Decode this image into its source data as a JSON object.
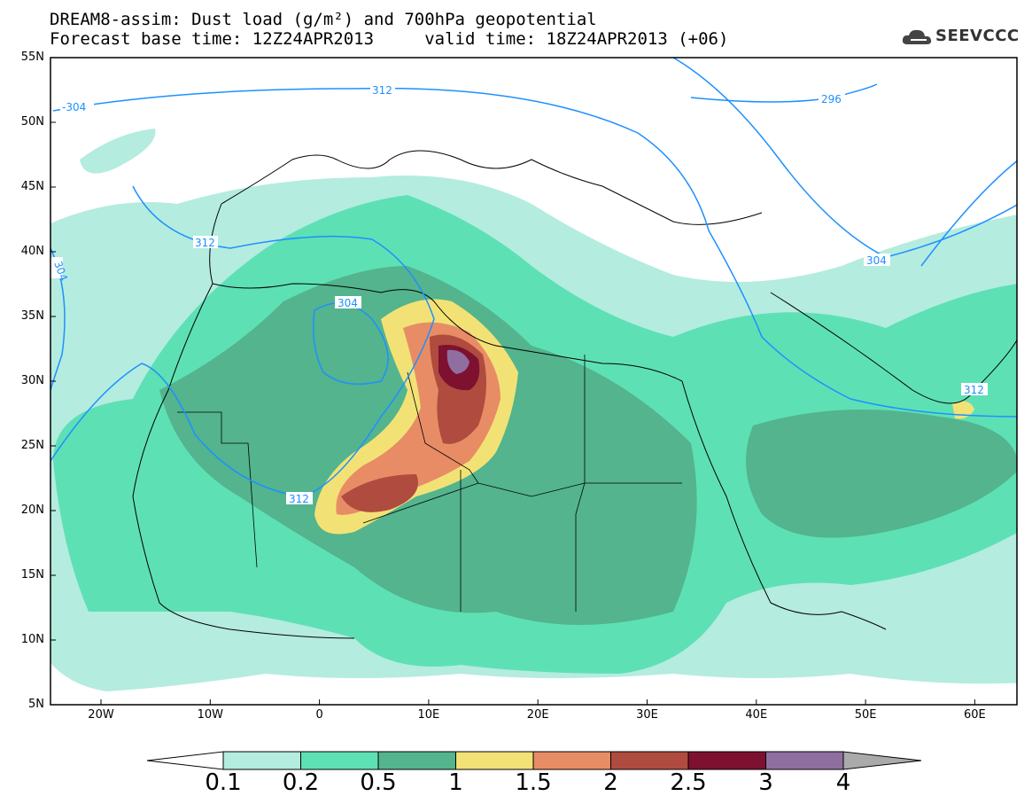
{
  "title_line1": "DREAM8-assim: Dust load (g/m²) and 700hPa geopotential",
  "title_line2": "Forecast base time: 12Z24APR2013     valid time: 18Z24APR2013 (+06)",
  "logo_text": "SEEVCCC",
  "lat_labels": [
    "55N",
    "50N",
    "45N",
    "40N",
    "35N",
    "30N",
    "25N",
    "20N",
    "15N",
    "10N",
    "5N"
  ],
  "lon_labels": [
    "20W",
    "10W",
    "0",
    "10E",
    "20E",
    "30E",
    "40E",
    "50E",
    "60E"
  ],
  "colorbar": {
    "labels": [
      "0.1",
      "0.2",
      "0.5",
      "1",
      "1.5",
      "2",
      "2.5",
      "3",
      "4"
    ],
    "colors": [
      "#b4ecdf",
      "#5ee0b5",
      "#53b48e",
      "#f2e276",
      "#e88c65",
      "#b04b3f",
      "#7e1030",
      "#8f6fa0"
    ],
    "extend_low_color": "#ffffff",
    "extend_high_color": "#aaaaaa"
  },
  "contour_labels": [
    "-304",
    "312",
    "312",
    "304",
    "304",
    "312",
    "296",
    "304",
    "312"
  ],
  "colors": {
    "contour": "#1e90ff",
    "coast": "#000000"
  }
}
